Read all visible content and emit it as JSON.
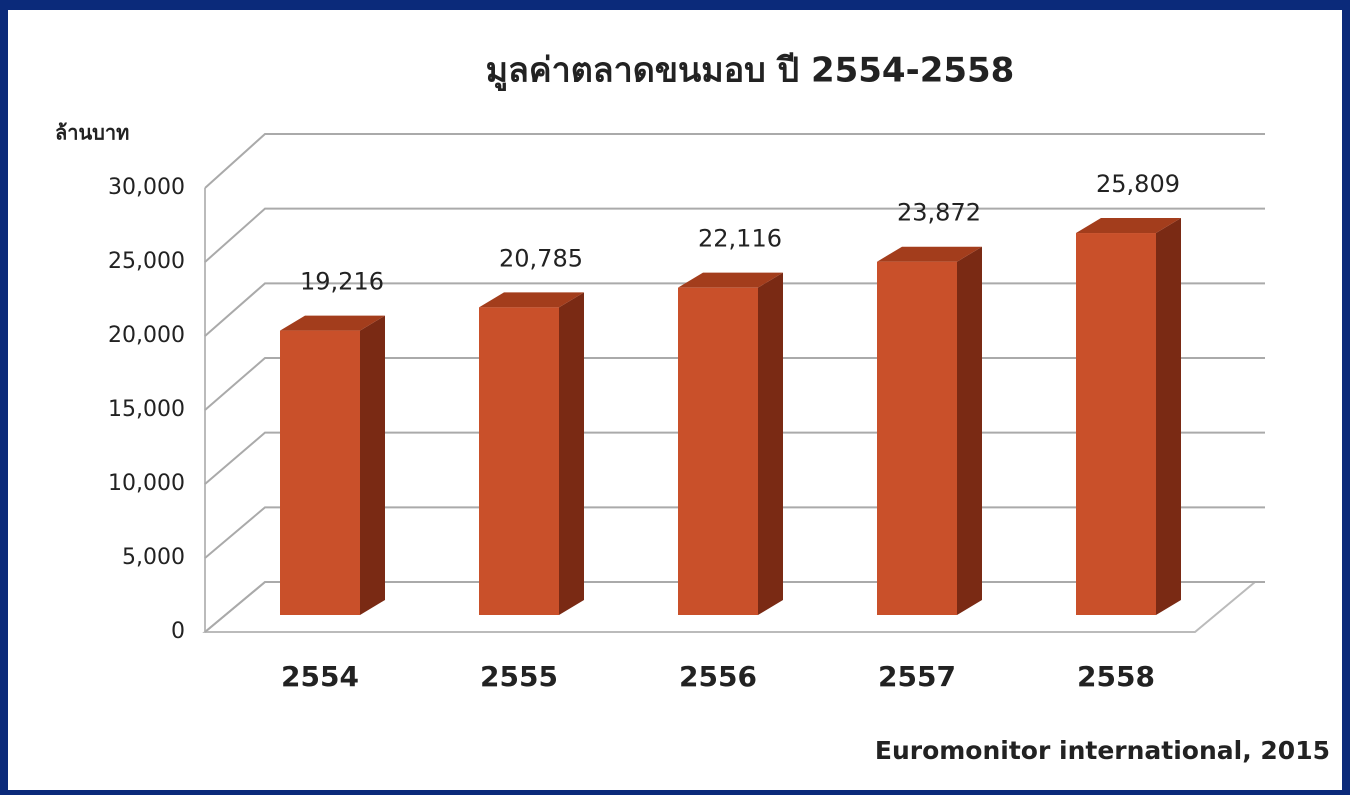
{
  "chart_data": {
    "type": "bar3d",
    "title": "มูลค่าตลาดขนมอบ ปี 2554-2558",
    "y_axis_label": "ล้านบาท",
    "source": "Euromonitor international, 2015",
    "categories": [
      "2554",
      "2555",
      "2556",
      "2557",
      "2558"
    ],
    "values": [
      19216,
      20785,
      22116,
      23872,
      25809
    ],
    "value_labels": [
      "19,216",
      "20,785",
      "22,116",
      "23,872",
      "25,809"
    ],
    "color": "#c9502a",
    "ylim": [
      0,
      30000
    ],
    "yticks": [
      0,
      {
        "value": 5000,
        "label": "5,000"
      },
      {
        "value": 10000,
        "label": "10,000"
      },
      {
        "value": 15000,
        "label": "15,000"
      },
      {
        "value": 20000,
        "label": "20,000"
      },
      {
        "value": 25000,
        "label": "25,000"
      },
      {
        "value": 30000,
        "label": "30,000"
      }
    ],
    "grid": true
  }
}
